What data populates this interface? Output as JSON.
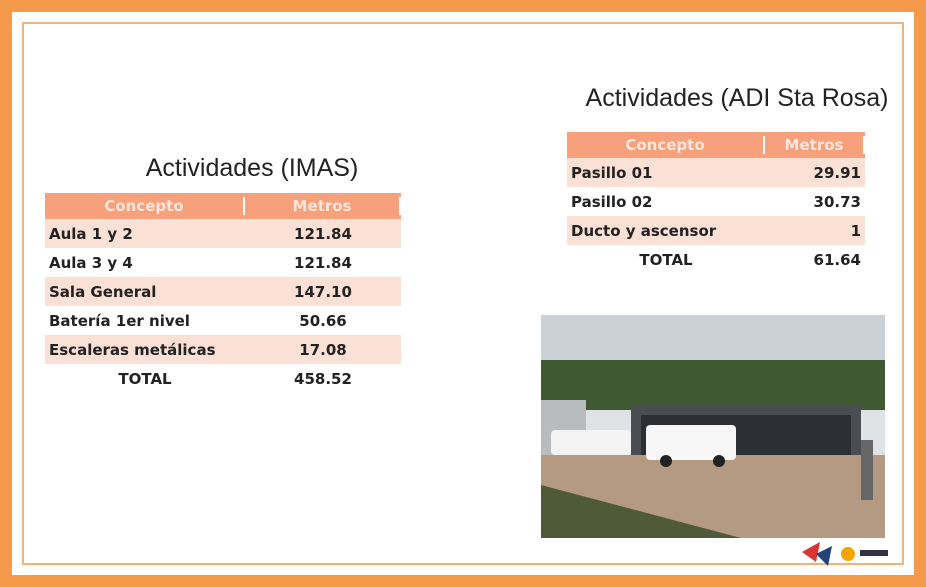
{
  "left_table": {
    "title": "Actividades (IMAS)",
    "header": [
      "Concepto",
      "Metros"
    ],
    "rows": [
      [
        "Aula 1 y 2",
        "121.84"
      ],
      [
        "Aula 3 y 4",
        "121.84"
      ],
      [
        "Sala General",
        "147.10"
      ],
      [
        "Batería 1er nivel",
        "50.66"
      ],
      [
        "Escaleras metálicas",
        "17.08"
      ],
      [
        "TOTAL",
        "458.52"
      ]
    ]
  },
  "right_table": {
    "title": "Actividades (ADI Sta Rosa)",
    "header": [
      "Concepto",
      "Metros"
    ],
    "rows": [
      [
        "Pasillo 01",
        "29.91"
      ],
      [
        "Pasillo 02",
        "30.73"
      ],
      [
        "Ducto y ascensor",
        "1"
      ],
      [
        "TOTAL",
        "61.64"
      ]
    ]
  }
}
